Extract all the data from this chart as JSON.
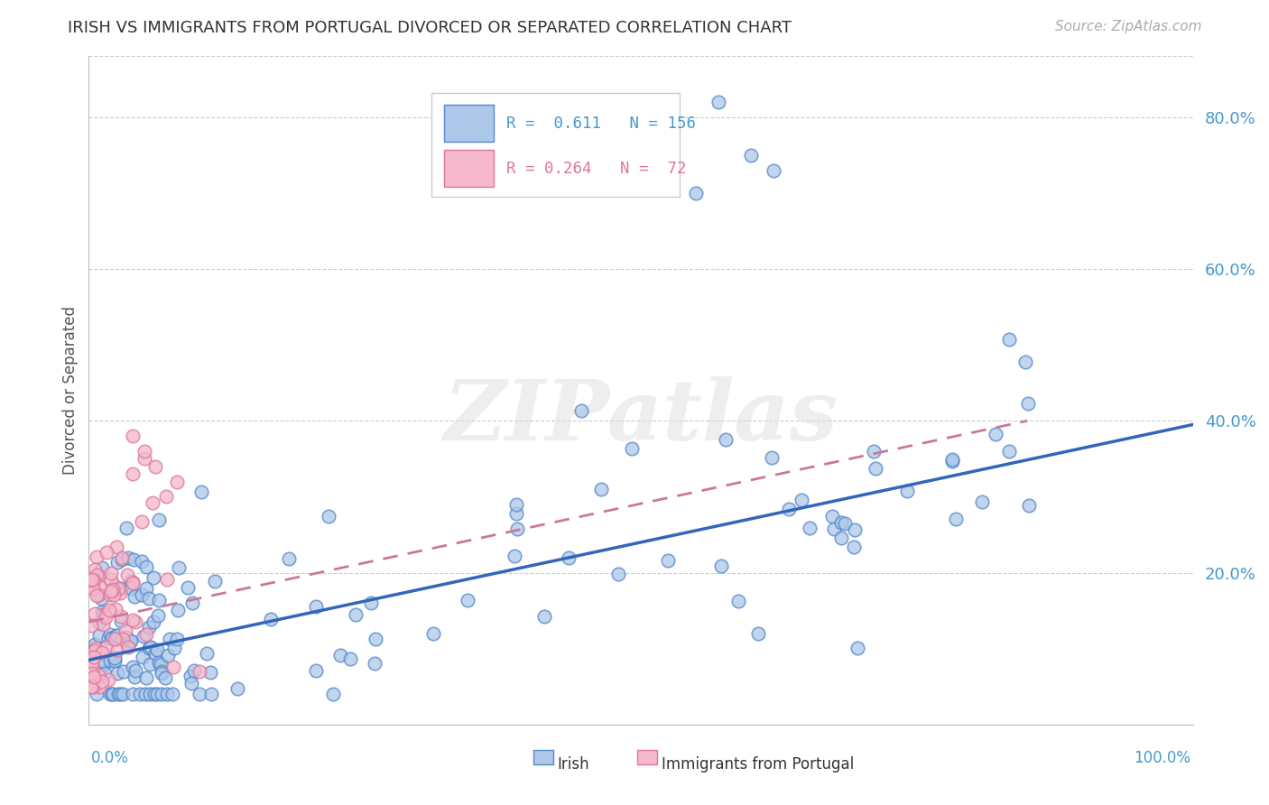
{
  "title": "IRISH VS IMMIGRANTS FROM PORTUGAL DIVORCED OR SEPARATED CORRELATION CHART",
  "source": "Source: ZipAtlas.com",
  "ylabel": "Divorced or Separated",
  "r1": 0.611,
  "n1": 156,
  "r2": 0.264,
  "n2": 72,
  "color_irish_fill": "#adc8e8",
  "color_irish_edge": "#5588cc",
  "color_portugal_fill": "#f5b8cc",
  "color_portugal_edge": "#dd7799",
  "color_irish_line": "#3366bb",
  "color_portugal_line": "#cc7799",
  "background_color": "#ffffff",
  "watermark_text": "ZIPatlas",
  "xlim": [
    0.0,
    1.0
  ],
  "ylim": [
    0.0,
    0.88
  ],
  "ytick_vals": [
    0.0,
    0.2,
    0.4,
    0.6,
    0.8
  ],
  "ytick_labels": [
    "",
    "20.0%",
    "40.0%",
    "60.0%",
    "80.0%"
  ],
  "irish_trendline_x": [
    0.0,
    1.0
  ],
  "irish_trendline_y": [
    0.085,
    0.395
  ],
  "portugal_trendline_x": [
    0.0,
    0.85
  ],
  "portugal_trendline_y": [
    0.135,
    0.4
  ]
}
